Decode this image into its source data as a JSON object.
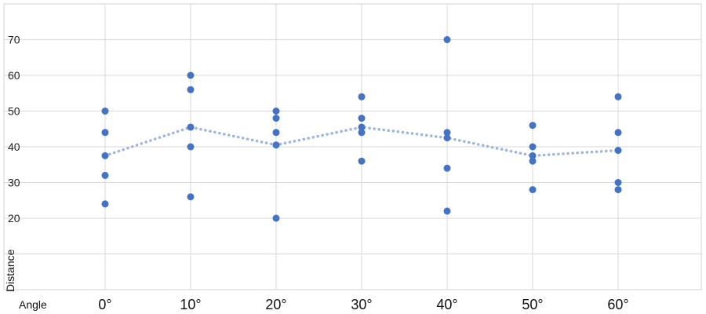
{
  "chart_data": {
    "type": "scatter",
    "title": "",
    "xlabel": "Angle",
    "ylabel": "Distance",
    "categories": [
      "0°",
      "10°",
      "20°",
      "30°",
      "40°",
      "50°",
      "60°"
    ],
    "yticks": [
      20,
      30,
      40,
      50,
      60,
      70
    ],
    "ylim": [
      0,
      80
    ],
    "grid": true,
    "legend": "none",
    "series": [
      {
        "type": "scatter",
        "color": "#4472c4",
        "points": [
          {
            "x": "0°",
            "y": 50
          },
          {
            "x": "0°",
            "y": 44
          },
          {
            "x": "0°",
            "y": 37.5
          },
          {
            "x": "0°",
            "y": 32
          },
          {
            "x": "0°",
            "y": 24
          },
          {
            "x": "10°",
            "y": 60
          },
          {
            "x": "10°",
            "y": 56
          },
          {
            "x": "10°",
            "y": 45.5
          },
          {
            "x": "10°",
            "y": 40
          },
          {
            "x": "10°",
            "y": 26
          },
          {
            "x": "20°",
            "y": 50
          },
          {
            "x": "20°",
            "y": 48
          },
          {
            "x": "20°",
            "y": 44
          },
          {
            "x": "20°",
            "y": 40.5
          },
          {
            "x": "20°",
            "y": 20
          },
          {
            "x": "30°",
            "y": 54
          },
          {
            "x": "30°",
            "y": 48
          },
          {
            "x": "30°",
            "y": 45.5
          },
          {
            "x": "30°",
            "y": 44
          },
          {
            "x": "30°",
            "y": 36
          },
          {
            "x": "40°",
            "y": 70
          },
          {
            "x": "40°",
            "y": 44
          },
          {
            "x": "40°",
            "y": 42.5
          },
          {
            "x": "40°",
            "y": 34
          },
          {
            "x": "40°",
            "y": 22
          },
          {
            "x": "50°",
            "y": 46
          },
          {
            "x": "50°",
            "y": 40
          },
          {
            "x": "50°",
            "y": 37.5
          },
          {
            "x": "50°",
            "y": 36
          },
          {
            "x": "50°",
            "y": 28
          },
          {
            "x": "60°",
            "y": 54
          },
          {
            "x": "60°",
            "y": 44
          },
          {
            "x": "60°",
            "y": 39
          },
          {
            "x": "60°",
            "y": 30
          },
          {
            "x": "60°",
            "y": 28
          }
        ]
      },
      {
        "type": "line",
        "style": "dotted",
        "color": "#9db5dc",
        "values": [
          37.5,
          45.5,
          40.5,
          45.5,
          42.5,
          37.5,
          39
        ]
      }
    ]
  }
}
